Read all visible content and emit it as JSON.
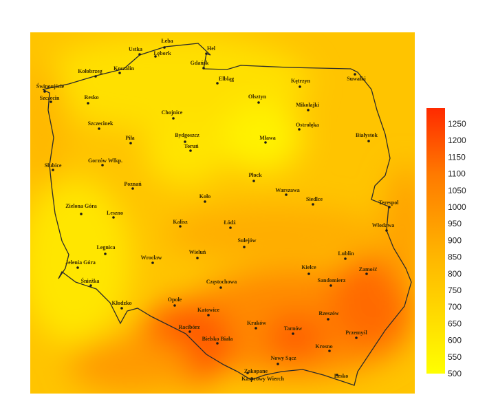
{
  "colors": {
    "low": "#ffff00",
    "mid": "#ffa500",
    "high": "#ff2a00",
    "border": "#222222",
    "dot": "#1a1a1a"
  },
  "legend": {
    "ticks": [
      "1250",
      "1200",
      "1150",
      "1100",
      "1050",
      "1000",
      "950",
      "900",
      "850",
      "800",
      "750",
      "700",
      "650",
      "600",
      "550",
      "500"
    ],
    "min": 500,
    "max": 1250
  },
  "cities": [
    {
      "name": "Hel",
      "dot": [
        300,
        78
      ],
      "lab": [
        307,
        70
      ]
    },
    {
      "name": "Łeba",
      "dot": [
        239,
        69
      ],
      "lab": [
        243,
        59
      ]
    },
    {
      "name": "Ustka",
      "dot": [
        203,
        79
      ],
      "lab": [
        197,
        71
      ]
    },
    {
      "name": "Lębork",
      "dot": [
        226,
        82
      ],
      "lab": [
        236,
        77
      ]
    },
    {
      "name": "Gdańsk",
      "dot": [
        296,
        99
      ],
      "lab": [
        290,
        91
      ]
    },
    {
      "name": "Kołobrzeg",
      "dot": [
        139,
        111
      ],
      "lab": [
        131,
        103
      ]
    },
    {
      "name": "Koszalin",
      "dot": [
        174,
        106
      ],
      "lab": [
        180,
        99
      ]
    },
    {
      "name": "Świnoujście",
      "dot": [
        65,
        133
      ],
      "lab": [
        73,
        125
      ]
    },
    {
      "name": "Szczecin",
      "dot": [
        74,
        148
      ],
      "lab": [
        72,
        142
      ]
    },
    {
      "name": "Resko",
      "dot": [
        128,
        150
      ],
      "lab": [
        133,
        141
      ]
    },
    {
      "name": "Elbląg",
      "dot": [
        316,
        121
      ],
      "lab": [
        329,
        114
      ]
    },
    {
      "name": "Olsztyn",
      "dot": [
        376,
        149
      ],
      "lab": [
        374,
        140
      ]
    },
    {
      "name": "Kętrzyn",
      "dot": [
        436,
        126
      ],
      "lab": [
        437,
        117
      ]
    },
    {
      "name": "Suwałki",
      "dot": [
        516,
        108
      ],
      "lab": [
        518,
        114
      ]
    },
    {
      "name": "Mikołajki",
      "dot": [
        448,
        160
      ],
      "lab": [
        447,
        152
      ]
    },
    {
      "name": "Ostrołęka",
      "dot": [
        435,
        188
      ],
      "lab": [
        447,
        181
      ]
    },
    {
      "name": "Mława",
      "dot": [
        386,
        207
      ],
      "lab": [
        389,
        200
      ]
    },
    {
      "name": "Białystok",
      "dot": [
        536,
        205
      ],
      "lab": [
        533,
        196
      ]
    },
    {
      "name": "Chojnice",
      "dot": [
        252,
        172
      ],
      "lab": [
        250,
        163
      ]
    },
    {
      "name": "Szczecinek",
      "dot": [
        144,
        187
      ],
      "lab": [
        146,
        179
      ]
    },
    {
      "name": "Piła",
      "dot": [
        190,
        208
      ],
      "lab": [
        189,
        200
      ]
    },
    {
      "name": "Bydgoszcz",
      "dot": [
        269,
        206
      ],
      "lab": [
        272,
        196
      ]
    },
    {
      "name": "Toruń",
      "dot": [
        277,
        219
      ],
      "lab": [
        278,
        212
      ]
    },
    {
      "name": "Gorzów Wlkp.",
      "dot": [
        149,
        240
      ],
      "lab": [
        153,
        233
      ]
    },
    {
      "name": "Słubice",
      "dot": [
        77,
        247
      ],
      "lab": [
        77,
        240
      ]
    },
    {
      "name": "Poznań",
      "dot": [
        193,
        274
      ],
      "lab": [
        193,
        267
      ]
    },
    {
      "name": "Płock",
      "dot": [
        369,
        263
      ],
      "lab": [
        371,
        254
      ]
    },
    {
      "name": "Koło",
      "dot": [
        298,
        293
      ],
      "lab": [
        298,
        285
      ]
    },
    {
      "name": "Warszawa",
      "dot": [
        416,
        283
      ],
      "lab": [
        418,
        276
      ]
    },
    {
      "name": "Siedlce",
      "dot": [
        455,
        297
      ],
      "lab": [
        457,
        289
      ]
    },
    {
      "name": "Terespol",
      "dot": [
        566,
        301
      ],
      "lab": [
        565,
        294
      ]
    },
    {
      "name": "Zielona Góra",
      "dot": [
        118,
        311
      ],
      "lab": [
        118,
        299
      ]
    },
    {
      "name": "Leszno",
      "dot": [
        165,
        316
      ],
      "lab": [
        167,
        309
      ]
    },
    {
      "name": "Kalisz",
      "dot": [
        262,
        329
      ],
      "lab": [
        262,
        322
      ]
    },
    {
      "name": "Łódź",
      "dot": [
        335,
        331
      ],
      "lab": [
        334,
        323
      ]
    },
    {
      "name": "Włodawa",
      "dot": [
        562,
        335
      ],
      "lab": [
        557,
        327
      ]
    },
    {
      "name": "Sulejów",
      "dot": [
        355,
        359
      ],
      "lab": [
        359,
        349
      ]
    },
    {
      "name": "Legnica",
      "dot": [
        153,
        369
      ],
      "lab": [
        154,
        359
      ]
    },
    {
      "name": "Wrocław",
      "dot": [
        222,
        382
      ],
      "lab": [
        220,
        374
      ]
    },
    {
      "name": "Wieluń",
      "dot": [
        287,
        375
      ],
      "lab": [
        287,
        366
      ]
    },
    {
      "name": "Jelenia Góra",
      "dot": [
        113,
        389
      ],
      "lab": [
        117,
        381
      ]
    },
    {
      "name": "Lublin",
      "dot": [
        502,
        376
      ],
      "lab": [
        503,
        368
      ]
    },
    {
      "name": "Kielce",
      "dot": [
        449,
        398
      ],
      "lab": [
        449,
        388
      ]
    },
    {
      "name": "Zamość",
      "dot": [
        533,
        398
      ],
      "lab": [
        535,
        391
      ]
    },
    {
      "name": "Sandomierz",
      "dot": [
        481,
        415
      ],
      "lab": [
        482,
        407
      ]
    },
    {
      "name": "Śnieżka",
      "dot": [
        132,
        415
      ],
      "lab": [
        131,
        408
      ]
    },
    {
      "name": "Częstochowa",
      "dot": [
        321,
        418
      ],
      "lab": [
        322,
        409
      ]
    },
    {
      "name": "Kłodzko",
      "dot": [
        177,
        448
      ],
      "lab": [
        177,
        440
      ]
    },
    {
      "name": "Opole",
      "dot": [
        254,
        444
      ],
      "lab": [
        254,
        435
      ]
    },
    {
      "name": "Katowice",
      "dot": [
        303,
        458
      ],
      "lab": [
        303,
        450
      ]
    },
    {
      "name": "Rzeszów",
      "dot": [
        477,
        464
      ],
      "lab": [
        478,
        455
      ]
    },
    {
      "name": "Racibórz",
      "dot": [
        276,
        482
      ],
      "lab": [
        275,
        475
      ]
    },
    {
      "name": "Kraków",
      "dot": [
        372,
        477
      ],
      "lab": [
        373,
        469
      ]
    },
    {
      "name": "Tarnów",
      "dot": [
        426,
        485
      ],
      "lab": [
        426,
        477
      ]
    },
    {
      "name": "Przemyśl",
      "dot": [
        518,
        491
      ],
      "lab": [
        518,
        483
      ]
    },
    {
      "name": "Bielsko Biała",
      "dot": [
        316,
        499
      ],
      "lab": [
        316,
        492
      ]
    },
    {
      "name": "Krosno",
      "dot": [
        479,
        510
      ],
      "lab": [
        471,
        503
      ]
    },
    {
      "name": "Nowy Sącz",
      "dot": [
        404,
        529
      ],
      "lab": [
        412,
        520
      ]
    },
    {
      "name": "Zakopane",
      "dot": [
        360,
        542
      ],
      "lab": [
        372,
        539
      ]
    },
    {
      "name": "Kasprowy Wierch",
      "dot": [
        366,
        550
      ],
      "lab": [
        382,
        550
      ]
    },
    {
      "name": "Lesko",
      "dot": [
        490,
        545
      ],
      "lab": [
        496,
        546
      ]
    }
  ]
}
